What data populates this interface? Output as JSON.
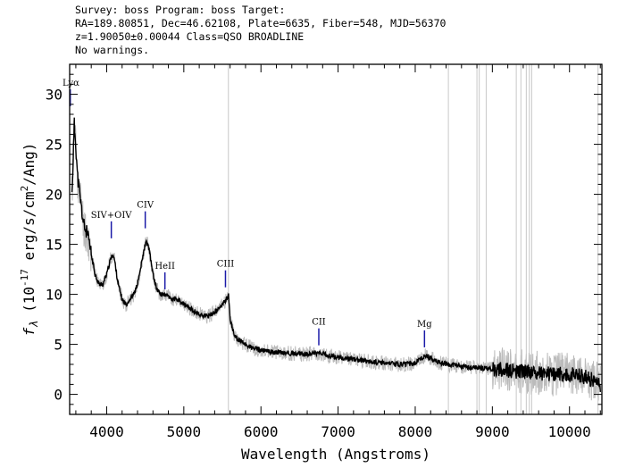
{
  "header": {
    "line1": "Survey: boss Program: boss Target:",
    "line2": "RA=189.80851, Dec=46.62108, Plate=6635, Fiber=548, MJD=56370",
    "line3": "z=1.90050±0.00044 Class=QSO BROADLINE",
    "line4": "No warnings."
  },
  "chart_data": {
    "type": "line",
    "xlabel": "Wavelength (Angstroms)",
    "ylabel": "f_λ (10^-17 erg/s/cm^2/Ang)",
    "xlim": [
      3520,
      10420
    ],
    "ylim": [
      -2,
      33
    ],
    "xticks": [
      "4000",
      "5000",
      "6000",
      "7000",
      "8000",
      "9000",
      "10000"
    ],
    "yticks": [
      "0",
      "5",
      "10",
      "15",
      "20",
      "25",
      "30"
    ],
    "colors": {
      "flux": "#000000",
      "noise": "#bbbbbb",
      "lines": "#1a1aa8"
    },
    "series": [
      {
        "x": [
          3550,
          3580,
          3600,
          3620,
          3650,
          3700,
          3750,
          3800,
          3850,
          3900,
          3950,
          4000,
          4050,
          4080,
          4100,
          4150,
          4200,
          4250,
          4300,
          4350,
          4400,
          4450,
          4500,
          4520,
          4550,
          4600,
          4650,
          4700,
          4750,
          4800,
          4850,
          4900,
          5000,
          5100,
          5200,
          5300,
          5400,
          5450,
          5500,
          5550,
          5580,
          5600,
          5650,
          5700,
          5800,
          5900,
          6000,
          6200,
          6400,
          6600,
          6700,
          6800,
          7000,
          7200,
          7400,
          7600,
          7800,
          8000,
          8100,
          8150,
          8200,
          8300,
          8500,
          8700,
          8900,
          9100,
          9300,
          9500,
          9700,
          9900,
          10100,
          10300,
          10400
        ],
        "y": [
          20,
          27,
          25,
          22,
          20,
          17,
          16,
          14,
          12,
          11,
          11,
          12,
          13.5,
          14,
          13.5,
          11,
          9.5,
          9,
          9.5,
          10,
          11,
          13,
          15,
          15.2,
          14.5,
          12,
          10.5,
          10,
          10,
          9.8,
          9.5,
          9.5,
          9,
          8.5,
          8,
          7.8,
          8.2,
          8.5,
          9,
          9.5,
          10,
          7.5,
          6,
          5.5,
          5,
          4.6,
          4.4,
          4.2,
          4.1,
          4,
          4.2,
          4,
          3.7,
          3.5,
          3.3,
          3.1,
          3,
          3.1,
          3.7,
          3.9,
          3.6,
          3.2,
          2.9,
          2.7,
          2.6,
          2.5,
          2.3,
          2.2,
          2.1,
          2,
          2,
          1.5,
          0.8
        ]
      }
    ],
    "annotations": [
      {
        "label": "Lyα",
        "x": 3528,
        "y": 30.5
      },
      {
        "label": "SIV+OIV",
        "x": 4060,
        "y": 17.3
      },
      {
        "label": "CIV",
        "x": 4500,
        "y": 18.3
      },
      {
        "label": "HeII",
        "x": 4755,
        "y": 12.2
      },
      {
        "label": "CIII",
        "x": 5540,
        "y": 12.4
      },
      {
        "label": "CII",
        "x": 6750,
        "y": 6.6
      },
      {
        "label": "Mg",
        "x": 8120,
        "y": 6.4
      }
    ]
  }
}
